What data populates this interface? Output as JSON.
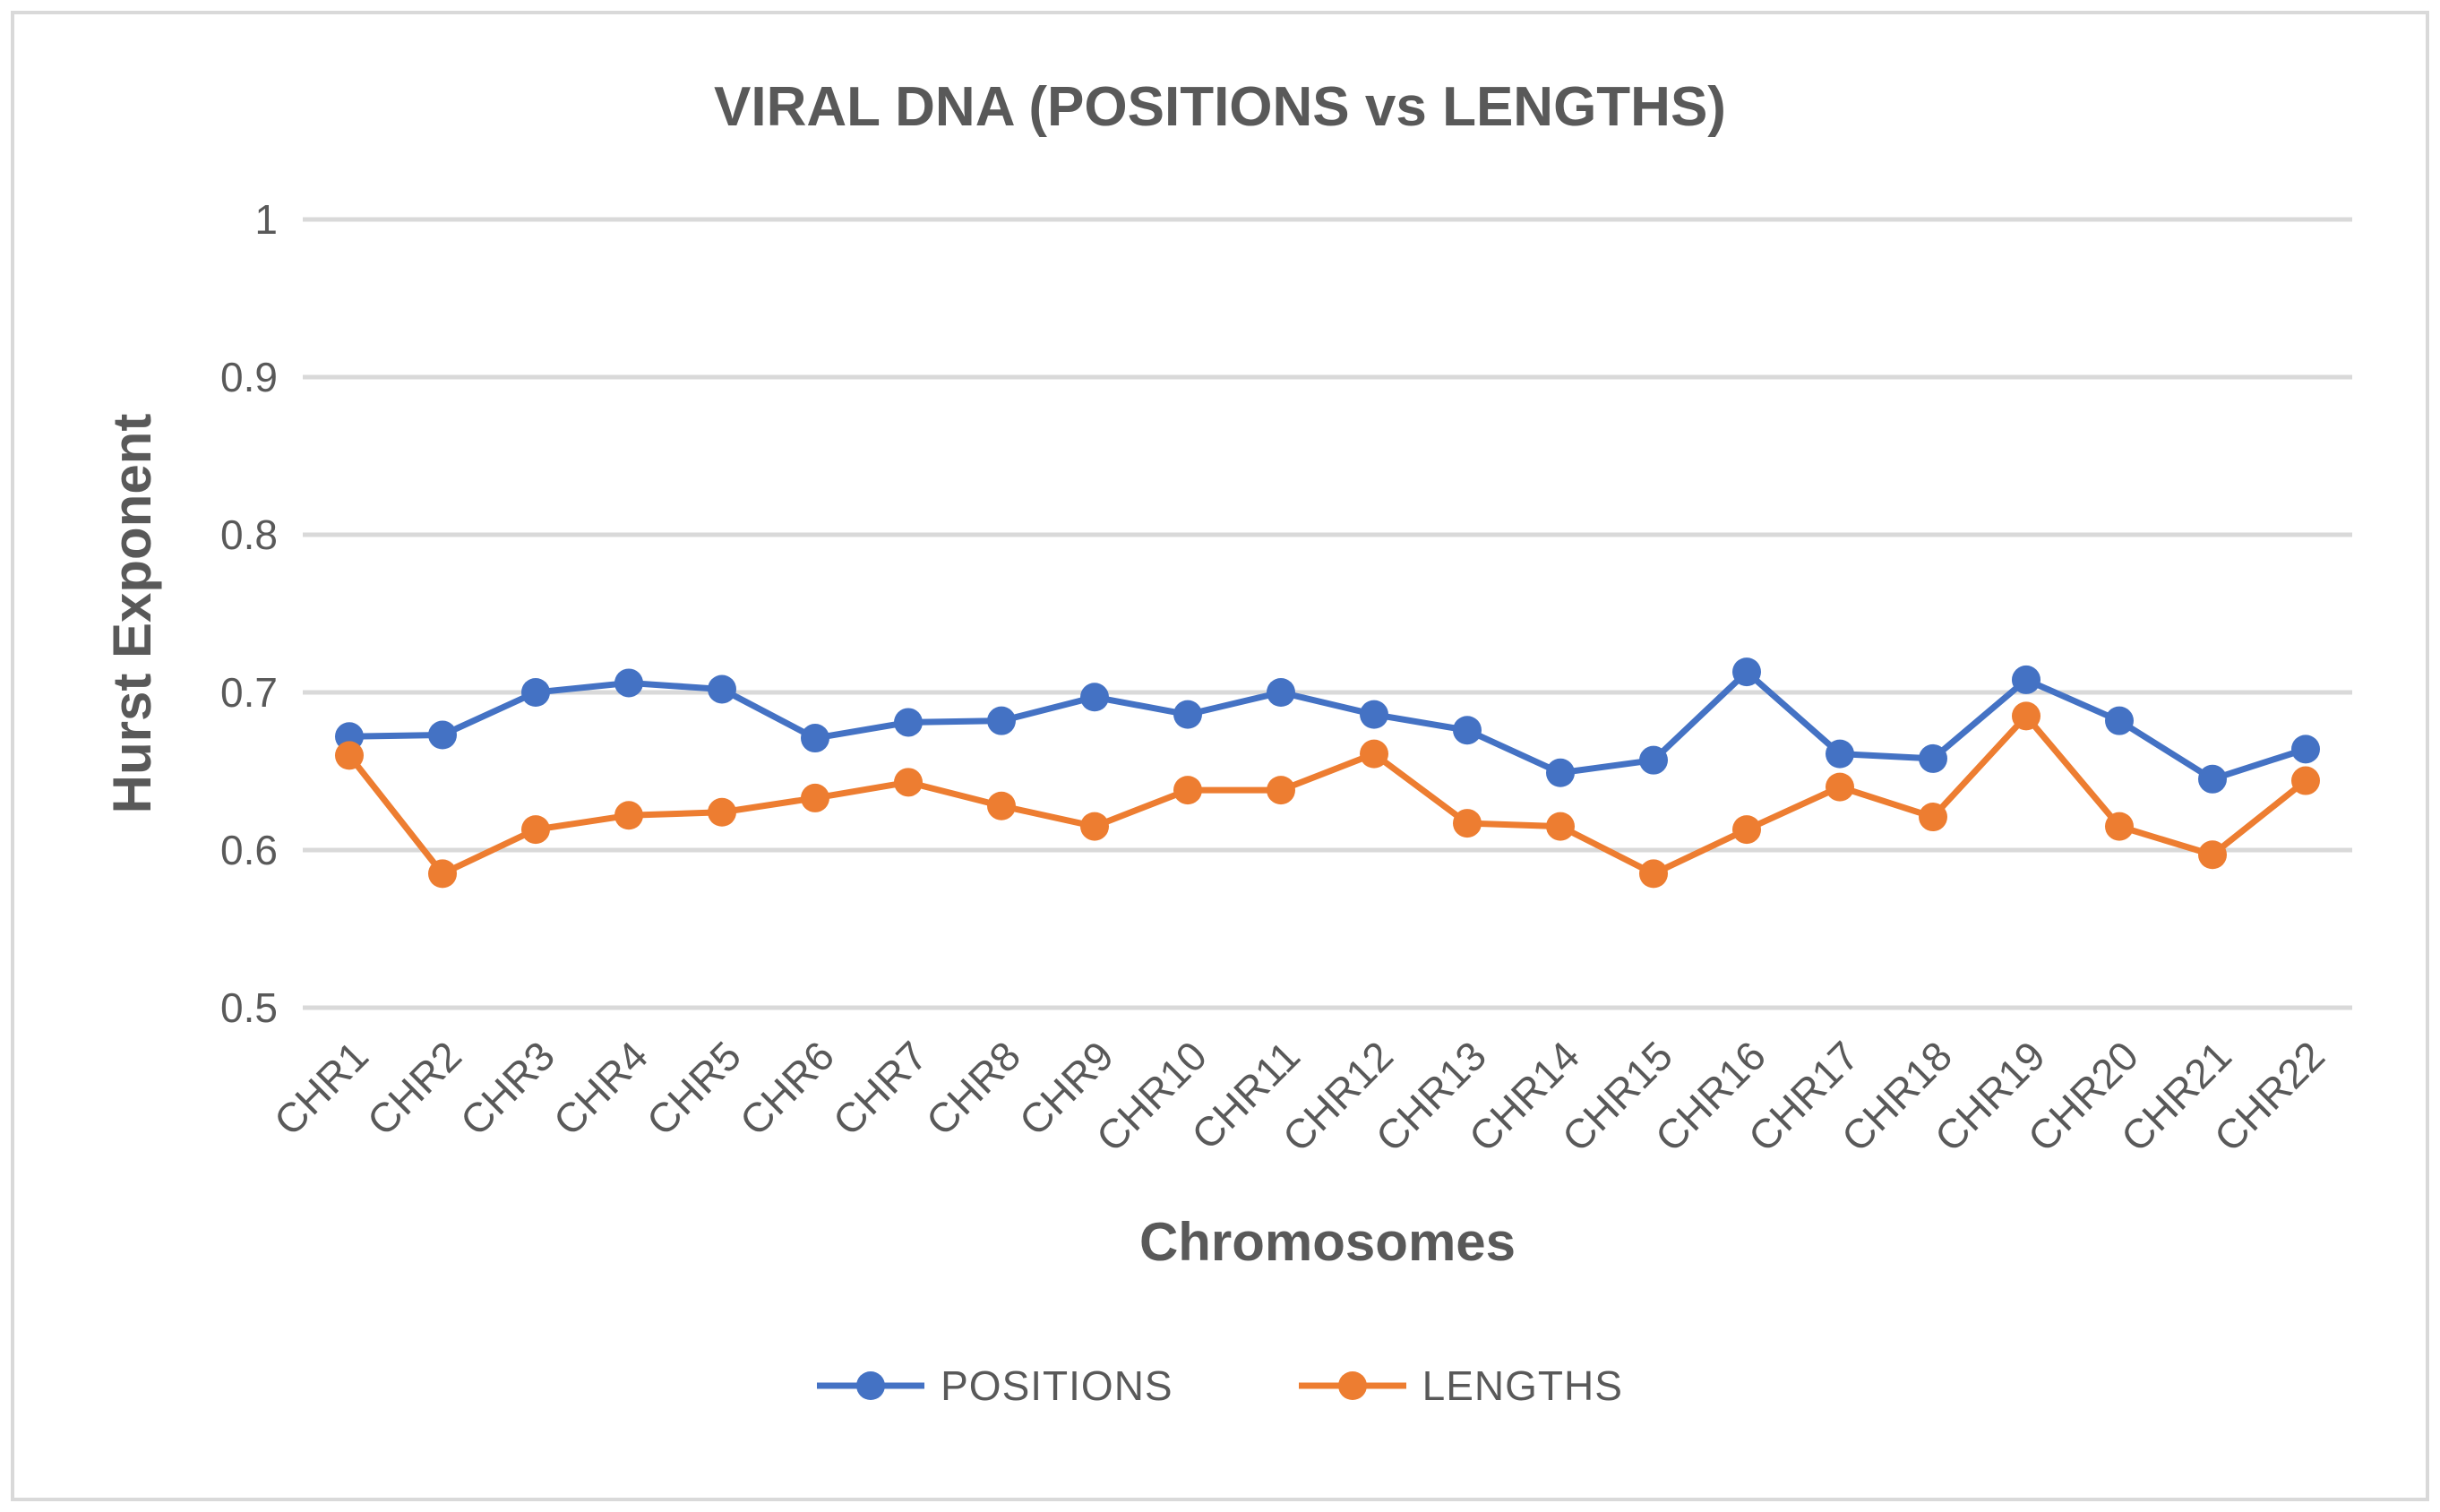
{
  "chart_data": {
    "type": "line",
    "title": "VIRAL DNA (POSITIONS vs LENGTHS)",
    "xlabel": "Chromosomes",
    "ylabel": "Hurst Exponent",
    "categories": [
      "CHR1",
      "CHR2",
      "CHR3",
      "CHR4",
      "CHR5",
      "CHR6",
      "CHR7",
      "CHR8",
      "CHR9",
      "CHR10",
      "CHR11",
      "CHR12",
      "CHR13",
      "CHR14",
      "CHR15",
      "CHR16",
      "CHR17",
      "CHR18",
      "CHR19",
      "CHR20",
      "CHR21",
      "CHR22"
    ],
    "series": [
      {
        "name": "POSITIONS",
        "color": "#4472C4",
        "values": [
          0.672,
          0.673,
          0.7,
          0.706,
          0.702,
          0.671,
          0.681,
          0.682,
          0.697,
          0.686,
          0.7,
          0.686,
          0.676,
          0.649,
          0.657,
          0.713,
          0.661,
          0.658,
          0.708,
          0.682,
          0.645,
          0.664
        ]
      },
      {
        "name": "LENGTHS",
        "color": "#ED7D31",
        "values": [
          0.66,
          0.585,
          0.613,
          0.622,
          0.624,
          0.633,
          0.643,
          0.628,
          0.615,
          0.638,
          0.638,
          0.661,
          0.617,
          0.615,
          0.585,
          0.613,
          0.64,
          0.621,
          0.685,
          0.615,
          0.597,
          0.644
        ]
      }
    ],
    "ylim": [
      0.5,
      1.0
    ],
    "yticks": [
      1,
      0.9,
      0.8,
      0.7,
      0.6,
      0.5
    ],
    "ytick_labels": [
      "1",
      "0.9",
      "0.8",
      "0.7",
      "0.6",
      "0.5"
    ],
    "grid": "horizontal-only",
    "legend_position": "bottom",
    "marker": "circle"
  },
  "style": {
    "gridline_color": "#d9d9d9",
    "border_color": "#d9d9d9",
    "text_color": "#595959",
    "background": "#ffffff"
  }
}
